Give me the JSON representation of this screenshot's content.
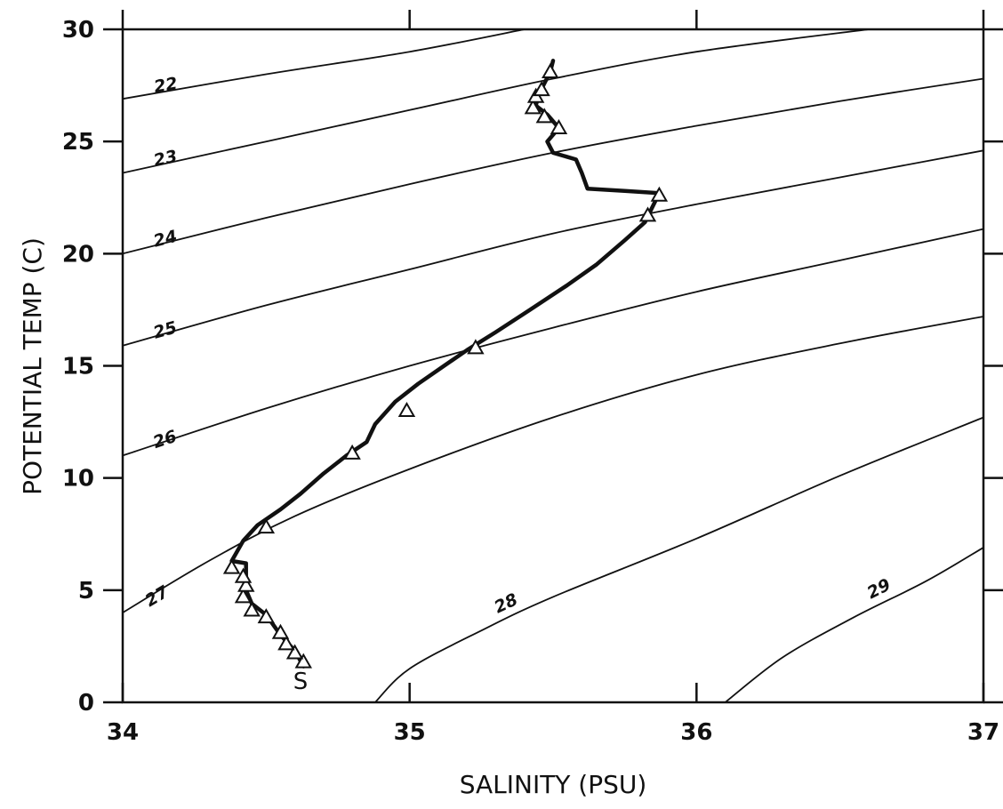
{
  "chart_data": {
    "type": "line",
    "title": "",
    "xlabel": "SALINITY (PSU)",
    "ylabel": "POTENTIAL TEMP (C)",
    "xlim": [
      34,
      37
    ],
    "ylim": [
      0,
      30
    ],
    "x_ticks": [
      "34",
      "35",
      "36",
      "37"
    ],
    "y_ticks": [
      "0",
      "5",
      "10",
      "15",
      "20",
      "25",
      "30"
    ],
    "grid": false,
    "isopycnals": [
      {
        "label": "22",
        "points": [
          [
            34.0,
            26.9
          ],
          [
            34.5,
            28.0
          ],
          [
            35.0,
            29.0
          ],
          [
            35.4,
            30.0
          ]
        ]
      },
      {
        "label": "23",
        "points": [
          [
            34.0,
            23.6
          ],
          [
            34.5,
            25.0
          ],
          [
            35.0,
            26.4
          ],
          [
            35.5,
            27.8
          ],
          [
            36.0,
            29.0
          ],
          [
            36.6,
            30.0
          ]
        ]
      },
      {
        "label": "24",
        "points": [
          [
            34.0,
            20.0
          ],
          [
            34.5,
            21.6
          ],
          [
            35.0,
            23.1
          ],
          [
            35.5,
            24.5
          ],
          [
            36.0,
            25.7
          ],
          [
            36.5,
            26.8
          ],
          [
            37.0,
            27.8
          ]
        ]
      },
      {
        "label": "25",
        "points": [
          [
            34.0,
            15.9
          ],
          [
            34.5,
            17.7
          ],
          [
            35.0,
            19.3
          ],
          [
            35.5,
            20.9
          ],
          [
            36.0,
            22.2
          ],
          [
            36.5,
            23.4
          ],
          [
            37.0,
            24.6
          ]
        ]
      },
      {
        "label": "26",
        "points": [
          [
            34.0,
            11.0
          ],
          [
            34.5,
            13.1
          ],
          [
            35.0,
            15.0
          ],
          [
            35.5,
            16.7
          ],
          [
            36.0,
            18.3
          ],
          [
            36.5,
            19.7
          ],
          [
            37.0,
            21.1
          ]
        ]
      },
      {
        "label": "27",
        "points": [
          [
            34.0,
            4.0
          ],
          [
            34.3,
            6.3
          ],
          [
            34.6,
            8.3
          ],
          [
            35.0,
            10.4
          ],
          [
            35.5,
            12.7
          ],
          [
            36.0,
            14.6
          ],
          [
            36.5,
            16.0
          ],
          [
            37.0,
            17.2
          ]
        ]
      },
      {
        "label": "28",
        "points": [
          [
            34.88,
            0.0
          ],
          [
            35.0,
            1.5
          ],
          [
            35.25,
            3.2
          ],
          [
            35.5,
            4.7
          ],
          [
            36.0,
            7.3
          ],
          [
            36.5,
            10.1
          ],
          [
            37.0,
            12.7
          ]
        ]
      },
      {
        "label": "29",
        "points": [
          [
            36.1,
            0.0
          ],
          [
            36.3,
            2.0
          ],
          [
            36.55,
            3.8
          ],
          [
            36.8,
            5.4
          ],
          [
            37.0,
            6.9
          ]
        ]
      }
    ],
    "series": [
      {
        "type": "line",
        "points": [
          [
            34.63,
            1.6
          ],
          [
            34.6,
            2.3
          ],
          [
            34.55,
            3.0
          ],
          [
            34.5,
            3.9
          ],
          [
            34.45,
            4.4
          ],
          [
            34.43,
            5.0
          ],
          [
            34.43,
            5.8
          ],
          [
            34.43,
            6.2
          ],
          [
            34.38,
            6.3
          ],
          [
            34.42,
            7.2
          ],
          [
            34.47,
            7.9
          ],
          [
            34.55,
            8.6
          ],
          [
            34.62,
            9.3
          ],
          [
            34.7,
            10.2
          ],
          [
            34.78,
            11.0
          ],
          [
            34.85,
            11.6
          ],
          [
            34.88,
            12.4
          ],
          [
            34.95,
            13.4
          ],
          [
            35.03,
            14.2
          ],
          [
            35.12,
            15.0
          ],
          [
            35.2,
            15.7
          ],
          [
            35.3,
            16.5
          ],
          [
            35.42,
            17.5
          ],
          [
            35.55,
            18.6
          ],
          [
            35.65,
            19.5
          ],
          [
            35.75,
            20.6
          ],
          [
            35.82,
            21.4
          ],
          [
            35.87,
            22.7
          ],
          [
            35.75,
            22.8
          ],
          [
            35.62,
            22.9
          ],
          [
            35.6,
            23.6
          ],
          [
            35.58,
            24.2
          ],
          [
            35.5,
            24.5
          ],
          [
            35.48,
            25.0
          ],
          [
            35.52,
            25.6
          ],
          [
            35.48,
            26.2
          ],
          [
            35.44,
            26.6
          ],
          [
            35.45,
            27.1
          ],
          [
            35.47,
            27.6
          ],
          [
            35.49,
            28.1
          ],
          [
            35.5,
            28.6
          ]
        ]
      }
    ],
    "markers": [
      [
        34.63,
        1.8
      ],
      [
        34.6,
        2.2
      ],
      [
        34.57,
        2.6
      ],
      [
        34.55,
        3.1
      ],
      [
        34.5,
        3.8
      ],
      [
        34.45,
        4.1
      ],
      [
        34.42,
        4.7
      ],
      [
        34.43,
        5.2
      ],
      [
        34.42,
        5.6
      ],
      [
        34.38,
        6.0
      ],
      [
        34.5,
        7.8
      ],
      [
        34.8,
        11.1
      ],
      [
        34.99,
        13.0
      ],
      [
        35.23,
        15.8
      ],
      [
        35.83,
        21.7
      ],
      [
        35.87,
        22.6
      ],
      [
        35.52,
        25.6
      ],
      [
        35.47,
        26.1
      ],
      [
        35.43,
        26.5
      ],
      [
        35.44,
        27.0
      ],
      [
        35.46,
        27.3
      ],
      [
        35.49,
        28.1
      ]
    ],
    "annotations": [
      {
        "text": "S",
        "x": 34.62,
        "y": 1.0
      }
    ]
  }
}
